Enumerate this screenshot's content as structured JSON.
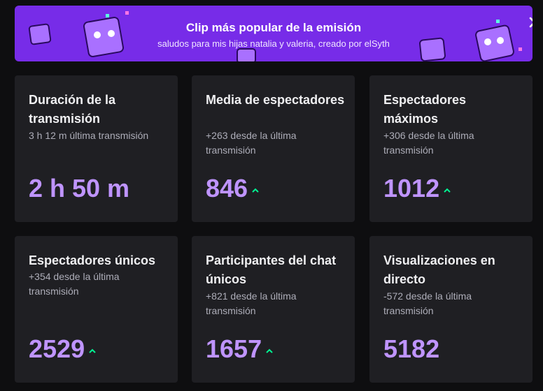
{
  "banner": {
    "title": "Clip más popular de la emisión",
    "subtitle": "saludos para mis hijas natalia y valeria, creado por elSyth"
  },
  "cards": [
    {
      "title": "Duración de la transmisión",
      "subtitle": "3 h 12 m última transmisión",
      "value": "2 h 50 m"
    },
    {
      "title": "Media de espectadores",
      "subtitle": "+263 desde la última transmisión",
      "value": 846
    },
    {
      "title": "Espectadores máximos",
      "subtitle": "+306 desde la última transmisión",
      "value": 1012
    },
    {
      "title": "Espectadores únicos",
      "subtitle": "+354 desde la última transmisión",
      "value": 2529
    },
    {
      "title": "Participantes del chat únicos",
      "subtitle": "+821 desde la última transmisión",
      "value": 1657
    },
    {
      "title": "Visualizaciones en directo",
      "subtitle": "-572 desde la última transmisión",
      "value": 5182
    }
  ]
}
